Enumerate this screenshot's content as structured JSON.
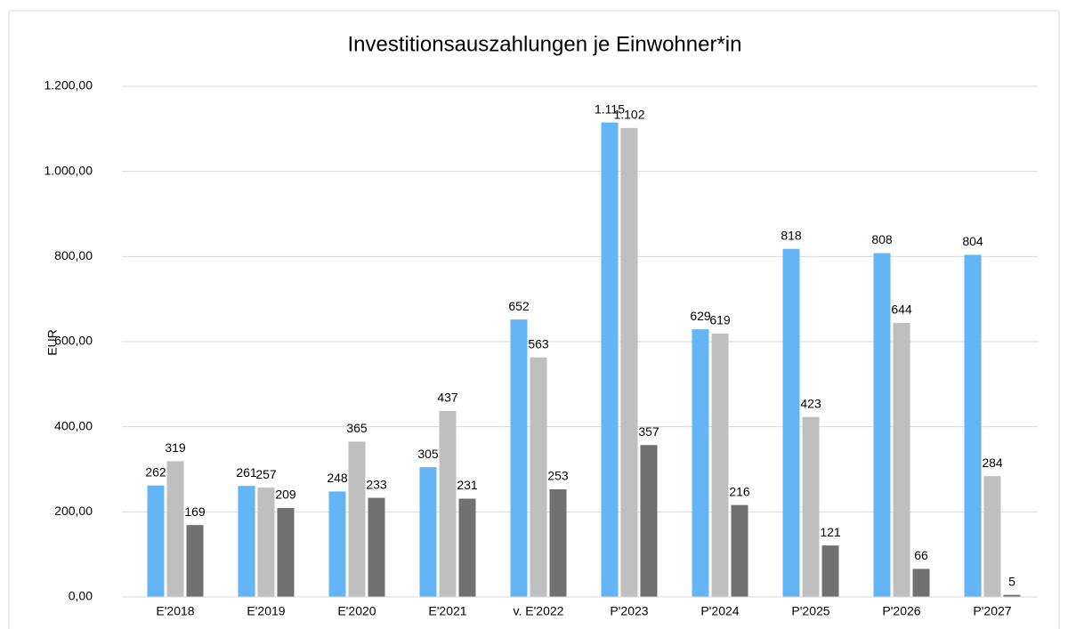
{
  "chart_data": {
    "type": "bar",
    "title": "Investitionsauszahlungen je Einwohner*in",
    "y_label": "EUR",
    "categories": [
      "E'2018",
      "E'2019",
      "E'2020",
      "E'2021",
      "v. E'2022",
      "P'2023",
      "P'2024",
      "P'2025",
      "P'2026",
      "P'2027"
    ],
    "series": [
      {
        "color": "#64b5f6",
        "values": [
          262,
          261,
          248,
          305,
          652,
          1115,
          629,
          818,
          808,
          804
        ],
        "value_labels": [
          "262",
          "261",
          "248",
          "305",
          "652",
          "1.115",
          "629",
          "818",
          "808",
          "804"
        ]
      },
      {
        "color": "#bfbfbf",
        "values": [
          319,
          257,
          365,
          437,
          563,
          1102,
          619,
          423,
          644,
          284
        ],
        "value_labels": [
          "319",
          "257",
          "365",
          "437",
          "563",
          "1.102",
          "619",
          "423",
          "644",
          "284"
        ]
      },
      {
        "color": "#707070",
        "values": [
          169,
          209,
          233,
          231,
          253,
          357,
          216,
          121,
          66,
          5
        ]
      }
    ],
    "ylim": [
      0,
      1200
    ],
    "yticks": [
      {
        "value": 0,
        "label": "0,00"
      },
      {
        "value": 200,
        "label": "200,00"
      },
      {
        "value": 400,
        "label": "400,00"
      },
      {
        "value": 600,
        "label": "600,00"
      },
      {
        "value": 800,
        "label": "800,00"
      },
      {
        "value": 1000,
        "label": "1.000,00"
      },
      {
        "value": 1200,
        "label": "1.200,00"
      }
    ],
    "grid": true
  }
}
